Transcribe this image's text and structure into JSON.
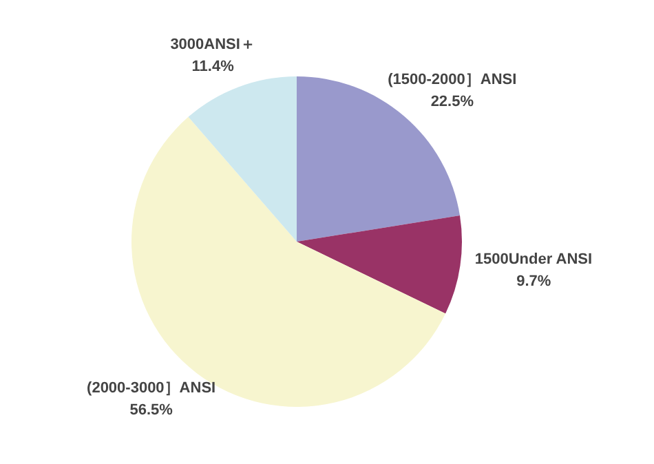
{
  "chart_data": {
    "type": "pie",
    "categories": [
      "(1500-2000］ANSI",
      "1500Under ANSI",
      "(2000-3000］ANSI",
      "3000ANSI＋"
    ],
    "values": [
      22.5,
      9.7,
      56.5,
      11.4
    ],
    "value_labels": [
      "22.5%",
      "9.7%",
      "56.5%",
      "11.4%"
    ],
    "colors": [
      "#9999cc",
      "#993366",
      "#f7f5cf",
      "#cde8ef"
    ],
    "legend": false
  }
}
